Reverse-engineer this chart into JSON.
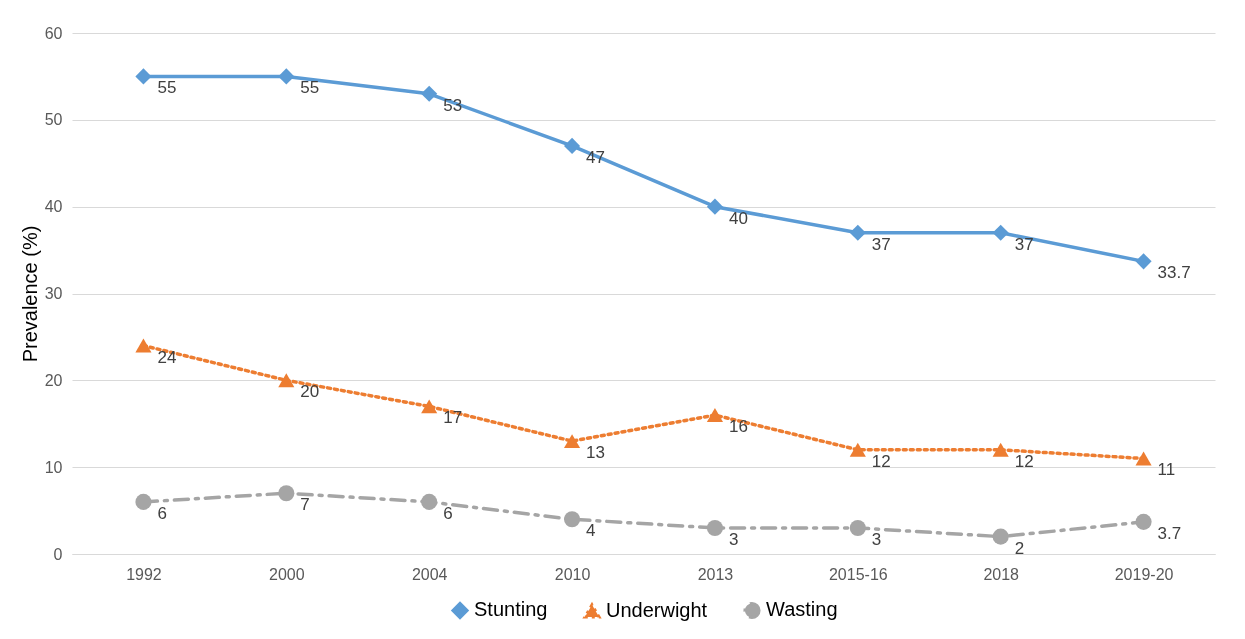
{
  "chart_data": {
    "type": "line",
    "ylabel": "Prevalence (%)",
    "categories": [
      "1992",
      "2000",
      "2004",
      "2010",
      "2013",
      "2015-16",
      "2018",
      "2019-20"
    ],
    "series": [
      {
        "name": "Stunting",
        "color": "#5b9bd5",
        "marker": "diamond",
        "line_style": "solid",
        "values": [
          55,
          55,
          53,
          47,
          40,
          37,
          37,
          33.7
        ]
      },
      {
        "name": "Underwight",
        "color": "#ed7d31",
        "marker": "triangle",
        "line_style": "dotted",
        "values": [
          24,
          20,
          17,
          13,
          16,
          12,
          12,
          11
        ]
      },
      {
        "name": "Wasting",
        "color": "#a5a5a5",
        "marker": "circle",
        "line_style": "dashed",
        "values": [
          6,
          7,
          6,
          4,
          3,
          3,
          2,
          3.7
        ]
      }
    ],
    "ylim": [
      0,
      60
    ],
    "yticks": [
      0,
      10,
      20,
      30,
      40,
      50,
      60
    ],
    "grid": "y",
    "legend": "bottom",
    "data_labels": true
  }
}
